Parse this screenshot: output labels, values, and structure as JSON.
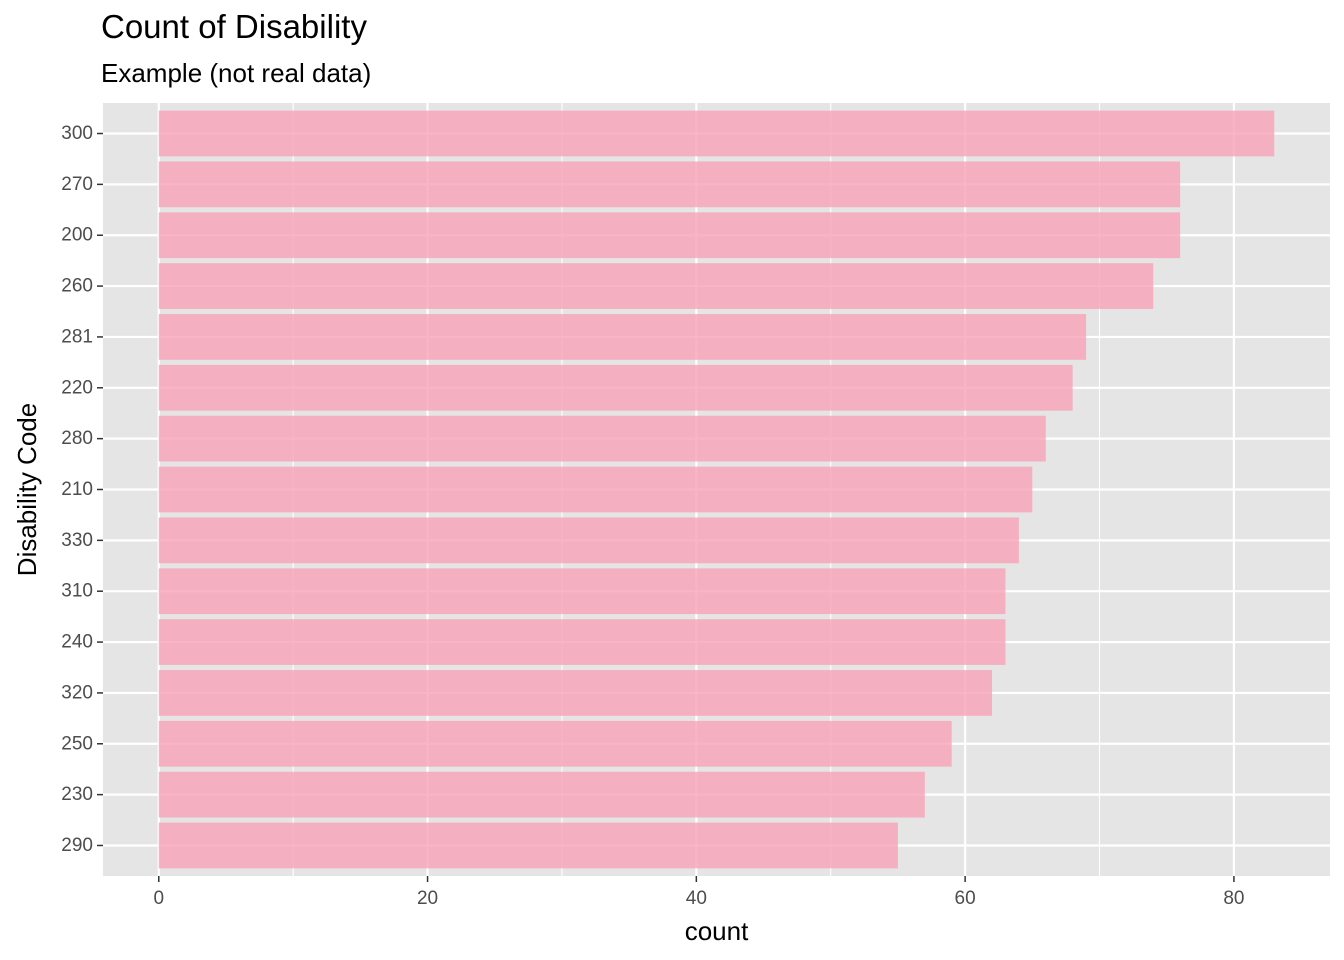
{
  "chart_data": {
    "type": "bar",
    "orientation": "horizontal",
    "title": "Count of Disability",
    "subtitle": "Example (not real data)",
    "xlabel": "count",
    "ylabel": "Disability Code",
    "categories": [
      "300",
      "270",
      "200",
      "260",
      "281",
      "220",
      "280",
      "210",
      "330",
      "310",
      "240",
      "320",
      "250",
      "230",
      "290"
    ],
    "values": [
      83,
      76,
      76,
      74,
      69,
      68,
      66,
      65,
      64,
      63,
      63,
      62,
      59,
      57,
      55
    ],
    "xlim": [
      -4.15,
      87.15
    ],
    "x_ticks": [
      0,
      20,
      40,
      60,
      80
    ],
    "grid": true,
    "bar_color": "#F8A3B7",
    "panel_background": "#E5E5E5",
    "grid_color": "#FFFFFF"
  }
}
